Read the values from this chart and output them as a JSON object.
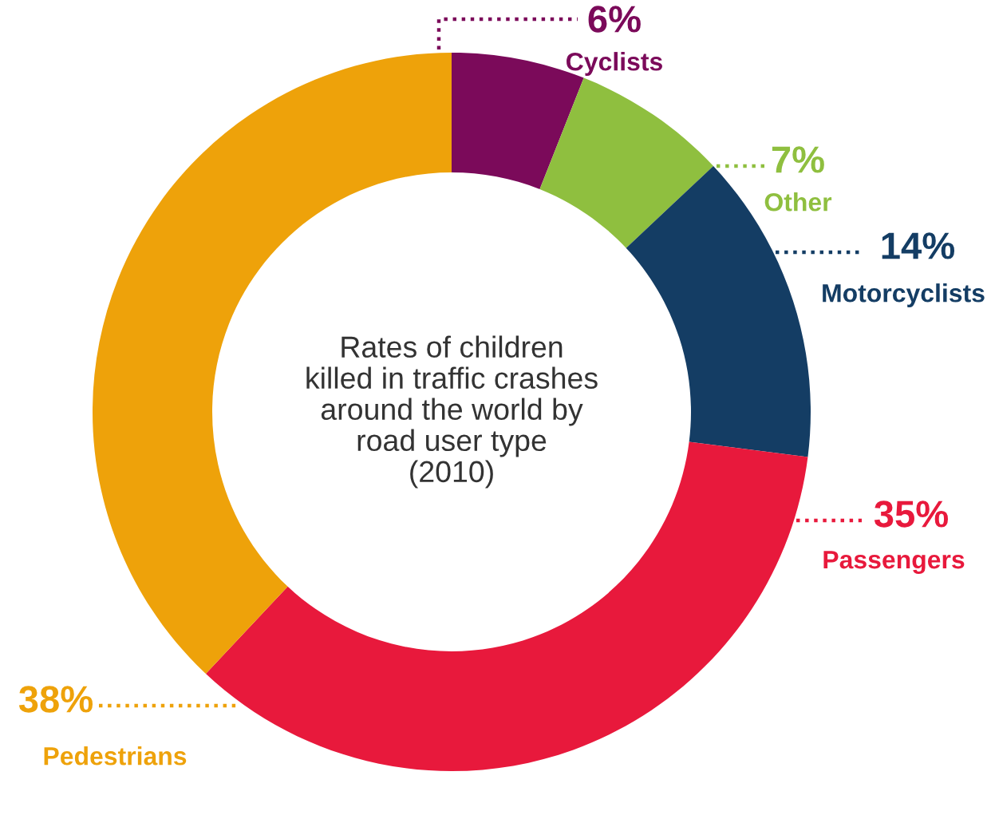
{
  "chart_data": {
    "type": "donut",
    "title": "Rates of children\nkilled in traffic crashes\naround the world by\nroad user type\n(2010)",
    "categories": [
      "Cyclists",
      "Other",
      "Motorcyclists",
      "Passengers",
      "Pedestrians"
    ],
    "values": [
      6,
      7,
      14,
      35,
      38
    ],
    "value_labels": [
      "6%",
      "7%",
      "14%",
      "35%",
      "38%"
    ],
    "colors": [
      "#7b0a5a",
      "#8fbf3f",
      "#143d64",
      "#e8193c",
      "#eea20a"
    ]
  }
}
